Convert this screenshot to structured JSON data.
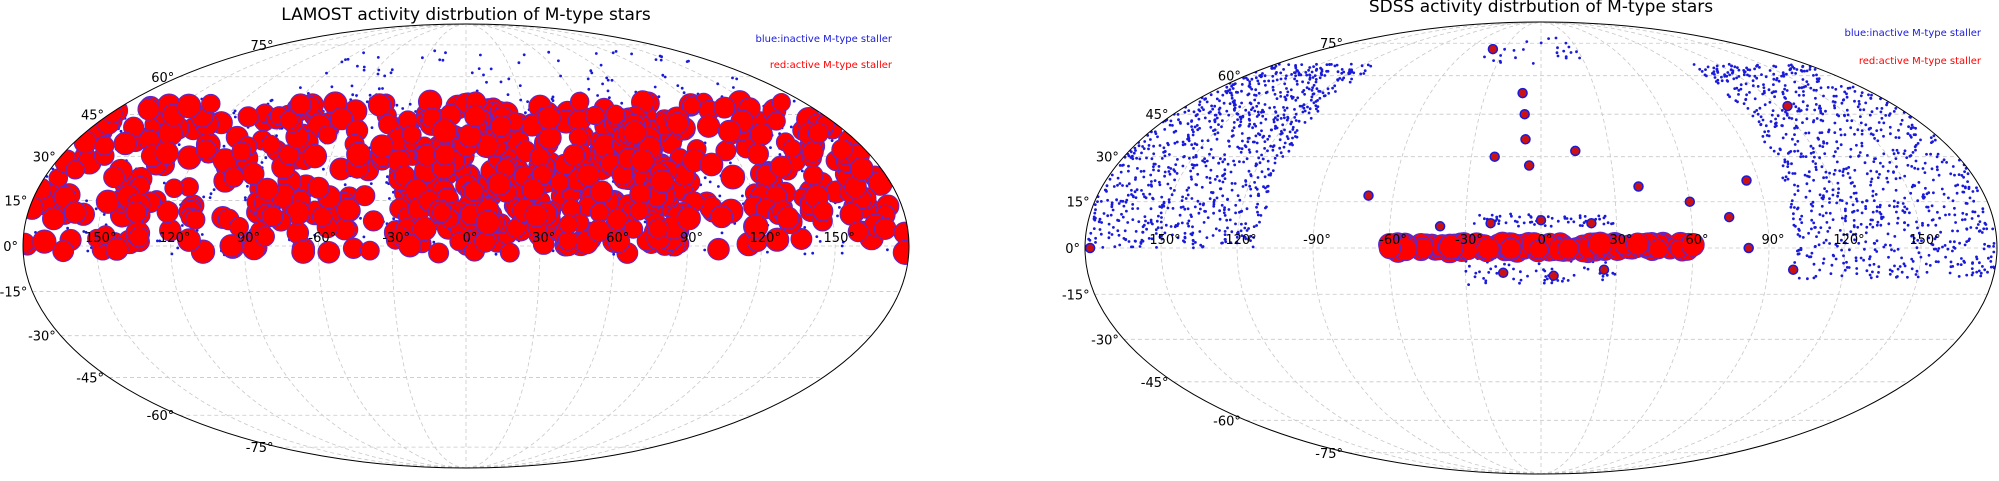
{
  "colors": {
    "inactive": "#1a1adb",
    "active": "#ff0000",
    "active_edge": "#5a2ad0",
    "grid": "#c8c8c8"
  },
  "chart_data": [
    {
      "type": "scatter",
      "projection": "mollweide",
      "title": "LAMOST activity distrbution of M-type stars",
      "legend": [
        {
          "label": "blue:inactive M-type staller",
          "color": "#1a1adb"
        },
        {
          "label": "red:active M-type staller",
          "color": "#ff0000"
        }
      ],
      "legend_position": "top-right",
      "grid": true,
      "lon_ticks": [
        "150°",
        "120°",
        "90°",
        "-60°",
        "-30°",
        "0°",
        "30°",
        "60°",
        "90°",
        "120°",
        "150°"
      ],
      "lat_ticks": [
        "75°",
        "60°",
        "45°",
        "30°",
        "15°",
        "0°",
        "-15°",
        "-30°",
        "-45°",
        "-60°",
        "-75°"
      ],
      "series": [
        {
          "name": "blue:inactive M-type staller",
          "regions": [
            {
              "lon": [
                -180,
                180
              ],
              "lat": [
                -3,
                52
              ],
              "density": 600
            },
            {
              "lon": [
                -100,
                170
              ],
              "lat": [
                52,
                72
              ],
              "density": 80
            }
          ]
        },
        {
          "name": "red:active M-type staller",
          "regions": [
            {
              "lon": [
                -180,
                180
              ],
              "lat": [
                10,
                50
              ],
              "density": 380
            },
            {
              "lon": [
                -30,
                90
              ],
              "lat": [
                0,
                45
              ],
              "density": 200
            },
            {
              "lon": [
                -180,
                180
              ],
              "lat": [
                -3,
                12
              ],
              "density": 120
            }
          ]
        }
      ]
    },
    {
      "type": "scatter",
      "projection": "mollweide",
      "title": "SDSS activity distrbution of M-type stars",
      "legend": [
        {
          "label": "blue:inactive M-type staller",
          "color": "#1a1adb"
        },
        {
          "label": "red:active M-type staller",
          "color": "#ff0000"
        }
      ],
      "legend_position": "top-right",
      "grid": true,
      "lon_ticks": [
        "150°",
        "120°",
        "-90°",
        "-60°",
        "-30°",
        "0°",
        "30°",
        "60°",
        "90°",
        "120°",
        "150°"
      ],
      "lat_ticks": [
        "75°",
        "60°",
        "45°",
        "30°",
        "15°",
        "0°",
        "-15°",
        "-30°",
        "-45°",
        "-60°",
        "-75°"
      ],
      "series": [
        {
          "name": "blue:inactive M-type staller",
          "regions": [
            {
              "lon": [
                -180,
                -110
              ],
              "lat": [
                0,
                65
              ],
              "density": 900
            },
            {
              "lon": [
                100,
                180
              ],
              "lat": [
                -10,
                65
              ],
              "density": 900
            },
            {
              "lon": [
                -50,
                30
              ],
              "lat": [
                65,
                78
              ],
              "density": 25
            },
            {
              "lon": [
                -30,
                30
              ],
              "lat": [
                -12,
                -3
              ],
              "density": 60
            },
            {
              "lon": [
                -30,
                30
              ],
              "lat": [
                7,
                11
              ],
              "density": 60
            }
          ]
        },
        {
          "name": "red:active M-type staller",
          "clusters": [
            {
              "lon": -10,
              "lat": 53
            },
            {
              "lon": -8,
              "lat": 45
            },
            {
              "lon": -7,
              "lat": 36
            },
            {
              "lon": -5,
              "lat": 27
            },
            {
              "lon": -20,
              "lat": 30
            },
            {
              "lon": 15,
              "lat": 32
            },
            {
              "lon": 40,
              "lat": 20
            },
            {
              "lon": 60,
              "lat": 15
            },
            {
              "lon": 75,
              "lat": 10
            },
            {
              "lon": 85,
              "lat": 22
            },
            {
              "lon": -70,
              "lat": 17
            },
            {
              "lon": -40,
              "lat": 7
            },
            {
              "lon": -20,
              "lat": 8
            },
            {
              "lon": 0,
              "lat": 9
            },
            {
              "lon": 20,
              "lat": 8
            },
            {
              "lon": -15,
              "lat": -8
            },
            {
              "lon": 5,
              "lat": -9
            },
            {
              "lon": 25,
              "lat": -7
            },
            {
              "lon": 82,
              "lat": 0
            },
            {
              "lon": 125,
              "lat": 48
            },
            {
              "lon": -178,
              "lat": 0
            },
            {
              "lon": 100,
              "lat": -7
            },
            {
              "lon": -40,
              "lat": 72
            }
          ],
          "regions": [
            {
              "lon": [
                -60,
                60
              ],
              "lat": [
                -1,
                1.5
              ],
              "density": 150
            }
          ]
        }
      ]
    }
  ]
}
